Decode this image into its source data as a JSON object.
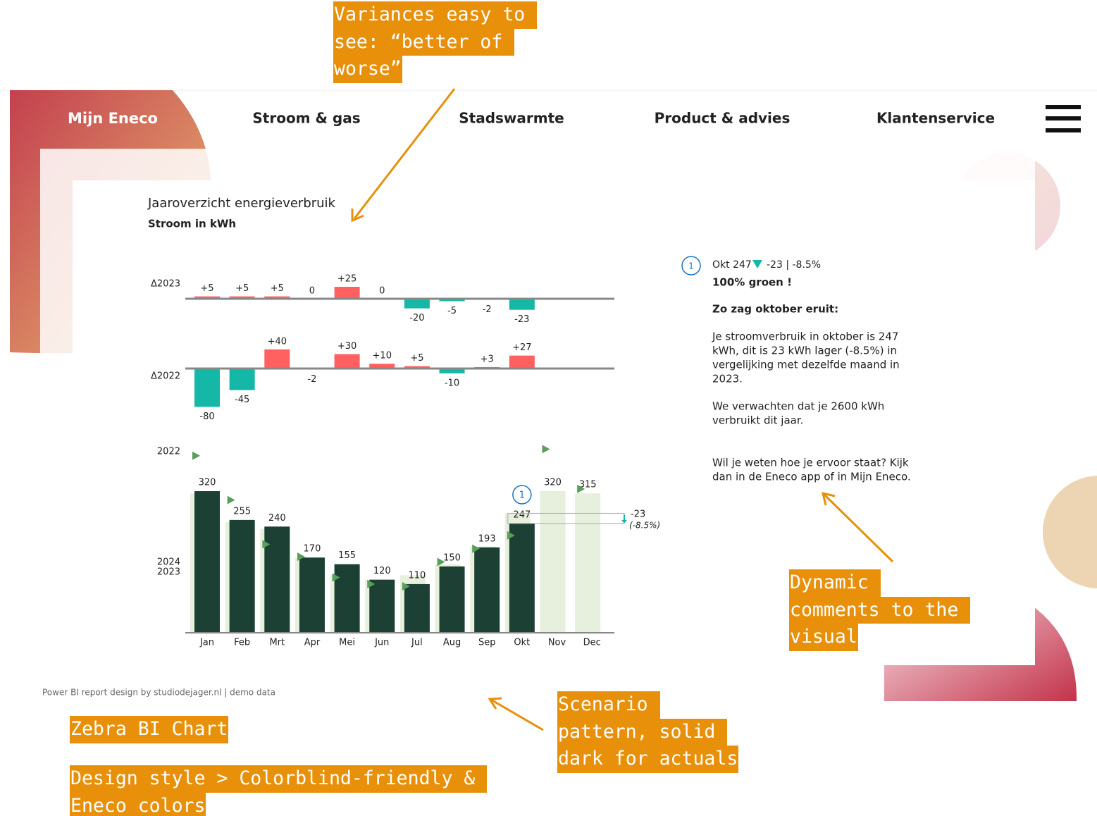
{
  "annotations": [
    {
      "lines": [
        "Variances easy to ",
        "see: “better of ",
        "worse”"
      ]
    },
    {
      "lines": [
        "Dynamic ",
        "comments to the ",
        "visual"
      ]
    },
    {
      "lines": [
        "Scenario ",
        "pattern, solid ",
        "dark for actuals"
      ]
    },
    {
      "lines": [
        "Zebra BI Chart"
      ]
    },
    {
      "lines": [
        "Design style > Colorblind-friendly & ",
        "Eneco colors"
      ]
    }
  ],
  "nav": {
    "brand": "Mijn Eneco",
    "items": [
      "Stroom & gas",
      "Stadswarmte",
      "Product & advies",
      "Klantenservice"
    ]
  },
  "comment": {
    "badge": "1",
    "headline": "Okt 247",
    "delta": "-23 | -8.5%",
    "intro": "100% groen !",
    "heading": "Zo zag oktober eruit:",
    "paragraphs": [
      [
        "Je stroomverbruik in oktober is 247",
        "kWh, dit is 23 kWh lager (-8.5%) in",
        "vergelijking met dezelfde maand in",
        "2023."
      ],
      [
        "We verwachten dat je 2600 kWh",
        "verbruikt dit jaar."
      ],
      [
        "Wil je weten hoe je ervoor staat? Kijk",
        "dan in de Eneco app of in Mijn Eneco."
      ]
    ]
  },
  "footer": "Power BI report design by studiodejager.nl | demo data",
  "chart_data": {
    "type": "bar",
    "title": "Jaaroverzicht energieverbruik",
    "subtitle": "Stroom in kWh",
    "categories": [
      "Jan",
      "Feb",
      "Mrt",
      "Apr",
      "Mei",
      "Jun",
      "Jul",
      "Aug",
      "Sep",
      "Okt",
      "Nov",
      "Dec"
    ],
    "series": [
      {
        "name": "2024",
        "color": "#1c4034",
        "values": [
          320,
          255,
          240,
          170,
          155,
          120,
          110,
          150,
          193,
          247,
          null,
          null
        ]
      },
      {
        "name": "2023",
        "color": "#e6f0dc",
        "values": [
          315,
          250,
          235,
          170,
          130,
          120,
          130,
          155,
          195,
          270,
          320,
          315
        ]
      },
      {
        "name": "2022",
        "color": "#5a9e5c",
        "values": [
          400,
          300,
          200,
          172,
          125,
          110,
          105,
          160,
          190,
          220,
          415,
          325
        ]
      }
    ],
    "variances": [
      {
        "name": "Δ2023",
        "values": [
          5,
          5,
          5,
          0,
          25,
          0,
          -20,
          -5,
          -2,
          -23,
          null,
          null
        ],
        "value_labels": [
          "+5",
          "+5",
          "+5",
          "0",
          "+25",
          "0",
          "-20",
          "-5",
          "-2",
          "-23",
          null,
          null
        ]
      },
      {
        "name": "Δ2022",
        "values": [
          -80,
          -45,
          40,
          -2,
          30,
          10,
          5,
          -10,
          3,
          27,
          null,
          null
        ],
        "value_labels": [
          "-80",
          "-45",
          "+40",
          "-2",
          "+30",
          "+10",
          "+5",
          "-10",
          "+3",
          "+27",
          null,
          null
        ]
      }
    ],
    "positive_color": "#ff6161",
    "negative_color": "#15b8a6",
    "callout": {
      "badge": "1",
      "delta": "-23",
      "percent": "(-8.5%)"
    }
  }
}
